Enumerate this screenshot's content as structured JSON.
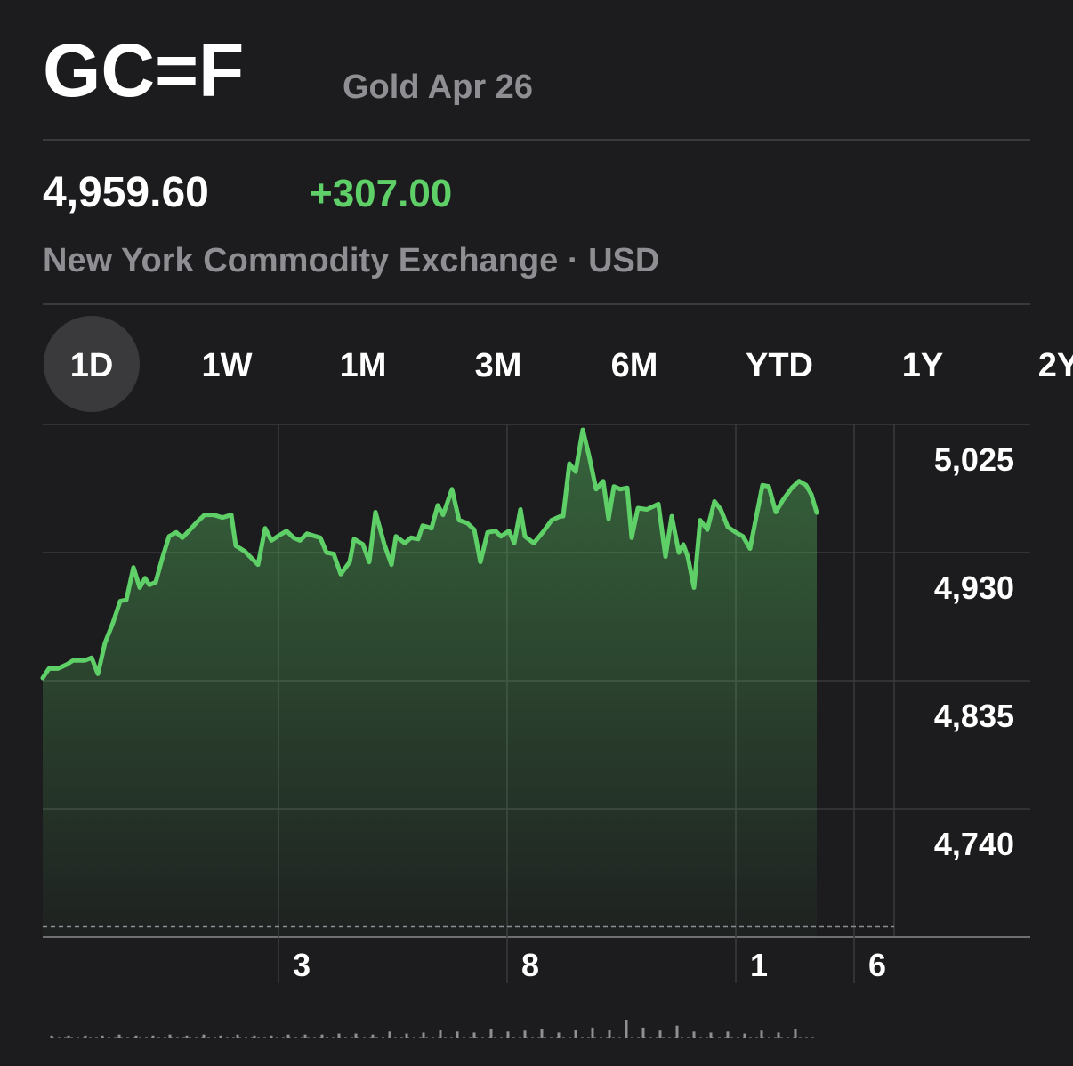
{
  "header": {
    "symbol": "GC=F",
    "name": "Gold Apr 26",
    "price": "4,959.60",
    "change": "+307.00",
    "exchange": "New York Commodity Exchange · USD"
  },
  "ranges": [
    "1D",
    "1W",
    "1M",
    "3M",
    "6M",
    "YTD",
    "1Y",
    "2Y"
  ],
  "selected_range": 0,
  "chart_data": {
    "type": "area",
    "color": "#5fd068",
    "x": [
      0,
      7,
      17,
      27,
      34,
      47,
      55,
      62,
      70,
      79,
      87,
      94,
      102,
      109,
      115,
      120,
      127,
      134,
      142,
      150,
      157,
      167,
      174,
      182,
      192,
      202,
      212,
      217,
      227,
      242,
      250,
      257,
      264,
      274,
      282,
      289,
      297,
      312,
      319,
      327,
      335,
      345,
      350,
      360,
      367,
      374,
      384,
      392,
      397,
      407,
      414,
      422,
      427,
      437,
      444,
      450,
      460,
      468,
      477,
      485,
      492,
      500,
      509,
      515,
      524,
      530,
      537,
      542,
      552,
      562,
      572,
      582,
      585,
      592,
      599,
      607,
      614,
      622,
      630,
      636,
      642,
      649,
      657,
      662,
      669,
      679,
      692,
      700,
      707,
      715,
      720,
      725,
      732,
      739,
      747,
      755,
      762,
      770,
      779,
      787,
      795,
      809,
      816,
      824,
      832,
      842,
      850,
      858,
      864,
      870
    ],
    "values": [
      4837,
      4844,
      4844,
      4847,
      4850,
      4850,
      4852,
      4840,
      4863,
      4878,
      4894,
      4895,
      4919,
      4904,
      4911,
      4906,
      4908,
      4925,
      4942,
      4945,
      4941,
      4948,
      4953,
      4958,
      4958,
      4956,
      4958,
      4935,
      4931,
      4921,
      4948,
      4939,
      4942,
      4946,
      4941,
      4939,
      4944,
      4941,
      4930,
      4929,
      4914,
      4923,
      4940,
      4936,
      4923,
      4960,
      4936,
      4921,
      4942,
      4937,
      4941,
      4940,
      4950,
      4948,
      4965,
      4958,
      4977,
      4954,
      4952,
      4947,
      4923,
      4945,
      4946,
      4942,
      4946,
      4937,
      4962,
      4942,
      4937,
      4945,
      4954,
      4957,
      4957,
      4996,
      4990,
      5021,
      5002,
      4977,
      4983,
      4955,
      4979,
      4977,
      4978,
      4941,
      4963,
      4962,
      4966,
      4927,
      4957,
      4930,
      4936,
      4927,
      4904,
      4954,
      4947,
      4968,
      4962,
      4949,
      4945,
      4942,
      4933,
      4980,
      4979,
      4960,
      4969,
      4978,
      4983,
      4980,
      4973,
      4959.6
    ],
    "xlim": [
      0,
      957
    ],
    "xticks": [
      {
        "value": 265,
        "label": "3"
      },
      {
        "value": 522,
        "label": "8"
      },
      {
        "value": 779,
        "label": "1"
      },
      {
        "value": 912,
        "label": "6"
      }
    ],
    "ylim": [
      4645,
      5025
    ],
    "yticks": [
      {
        "value": 5025,
        "label": "5,025"
      },
      {
        "value": 4930,
        "label": "4,930"
      },
      {
        "value": 4835,
        "label": "4,835"
      },
      {
        "value": 4740,
        "label": "4,740"
      }
    ],
    "grid": true,
    "reference_line": 4652.6,
    "volume": {
      "color": "#8e8e93",
      "x": [
        10,
        29,
        48,
        67,
        86,
        105,
        124,
        143,
        162,
        181,
        200,
        219,
        238,
        257,
        276,
        295,
        314,
        333,
        352,
        371,
        390,
        409,
        428,
        447,
        466,
        485,
        504,
        523,
        542,
        561,
        580,
        599,
        618,
        637,
        656,
        675,
        694,
        713,
        732,
        751,
        770,
        789,
        808,
        827,
        846
      ],
      "values": [
        2,
        2,
        2,
        2,
        3,
        2,
        2,
        3,
        2,
        3,
        2,
        3,
        2,
        2,
        3,
        3,
        3,
        4,
        4,
        3,
        6,
        4,
        5,
        8,
        6,
        5,
        9,
        6,
        7,
        9,
        5,
        8,
        10,
        8,
        18,
        10,
        7,
        12,
        6,
        5,
        6,
        4,
        7,
        5,
        9
      ]
    }
  }
}
